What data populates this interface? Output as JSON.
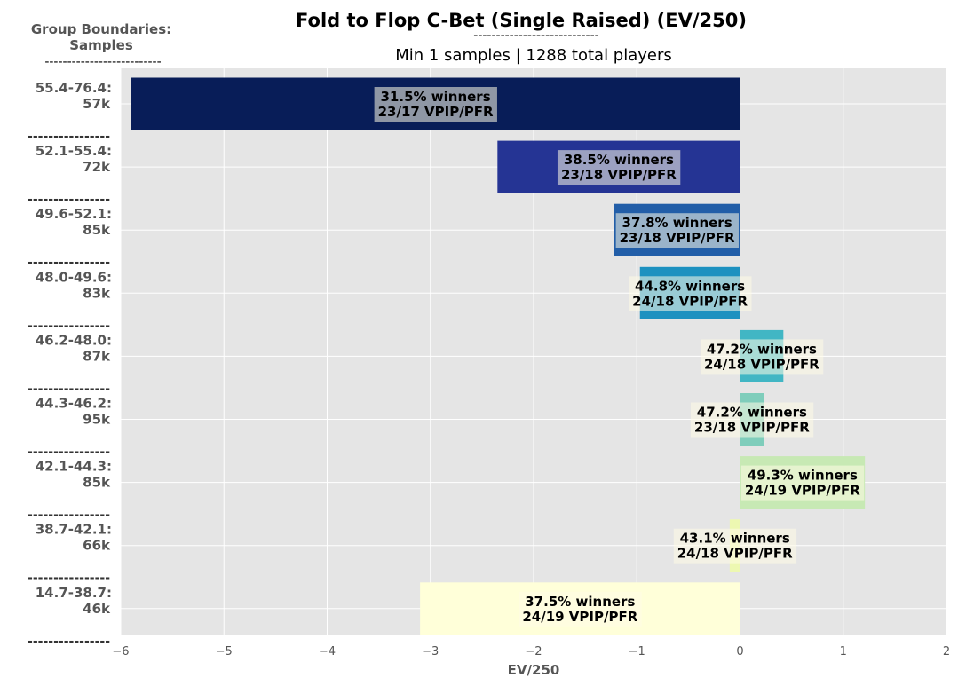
{
  "chart_data": {
    "type": "bar",
    "orientation": "horizontal",
    "title": "Fold to Flop C-Bet (Single Raised) (EV/250)",
    "title_underline": "----------------------------",
    "subtitle": "Min 1 samples | 1288 total players",
    "group_header_line1": "Group Boundaries:",
    "group_header_line2": "Samples",
    "group_header_dashes": "--------------------------",
    "separator": "----------------",
    "xlabel": "EV/250",
    "xlim": [
      -6,
      2
    ],
    "xticks": [
      -6,
      -5,
      -4,
      -3,
      -2,
      -1,
      0,
      1,
      2
    ],
    "xtick_labels": [
      "−6",
      "−5",
      "−4",
      "−3",
      "−2",
      "−1",
      "0",
      "1",
      "2"
    ],
    "grid": true,
    "bars": [
      {
        "group": "55.4-76.4:",
        "samples": "57k",
        "value": -5.9,
        "label1": "31.5% winners",
        "label2": "23/17 VPIP/PFR",
        "color": "#081d58"
      },
      {
        "group": "52.1-55.4:",
        "samples": "72k",
        "value": -2.35,
        "label1": "38.5% winners",
        "label2": "23/18 VPIP/PFR",
        "color": "#253494"
      },
      {
        "group": "49.6-52.1:",
        "samples": "85k",
        "value": -1.22,
        "label1": "37.8% winners",
        "label2": "23/18 VPIP/PFR",
        "color": "#225ea8"
      },
      {
        "group": "48.0-49.6:",
        "samples": "83k",
        "value": -0.97,
        "label1": "44.8% winners",
        "label2": "24/18 VPIP/PFR",
        "color": "#1d91c0"
      },
      {
        "group": "46.2-48.0:",
        "samples": "87k",
        "value": 0.42,
        "label1": "47.2% winners",
        "label2": "24/18 VPIP/PFR",
        "color": "#41b6c4"
      },
      {
        "group": "44.3-46.2:",
        "samples": "95k",
        "value": 0.23,
        "label1": "47.2% winners",
        "label2": "23/18 VPIP/PFR",
        "color": "#7fcdbb"
      },
      {
        "group": "42.1-44.3:",
        "samples": "85k",
        "value": 1.21,
        "label1": "49.3% winners",
        "label2": "24/19 VPIP/PFR",
        "color": "#c7e9b4"
      },
      {
        "group": "38.7-42.1:",
        "samples": "66k",
        "value": -0.1,
        "label1": "43.1% winners",
        "label2": "24/18 VPIP/PFR",
        "color": "#edf8b1"
      },
      {
        "group": "14.7-38.7:",
        "samples": "46k",
        "value": -3.1,
        "label1": "37.5% winners",
        "label2": "24/19 VPIP/PFR",
        "color": "#ffffd9"
      }
    ]
  }
}
